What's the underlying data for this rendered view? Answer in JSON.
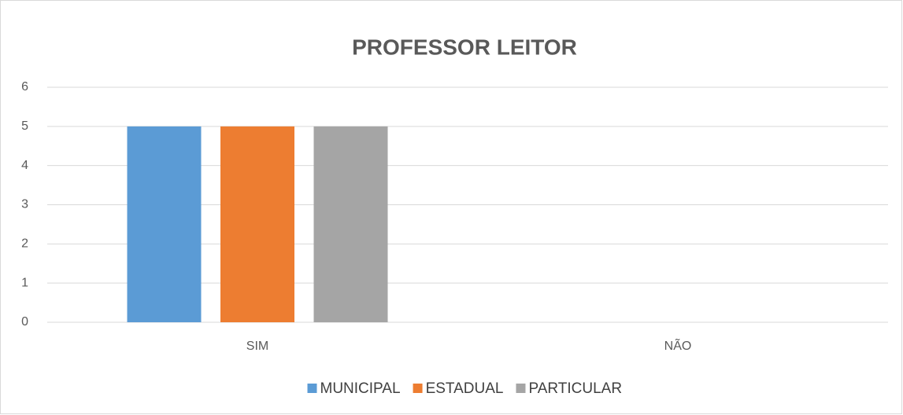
{
  "chart_data": {
    "type": "bar",
    "title": "PROFESSOR LEITOR",
    "categories": [
      "SIM",
      "NÃO"
    ],
    "series": [
      {
        "name": "MUNICIPAL",
        "color": "#5b9bd5",
        "values": [
          5,
          0
        ]
      },
      {
        "name": "ESTADUAL",
        "color": "#ed7d31",
        "values": [
          5,
          0
        ]
      },
      {
        "name": "PARTICULAR",
        "color": "#a5a5a5",
        "values": [
          5,
          0
        ]
      }
    ],
    "ylim": [
      0,
      6
    ],
    "yticks": [
      0,
      1,
      2,
      3,
      4,
      5,
      6
    ],
    "grid": true,
    "legend": "bottom"
  }
}
